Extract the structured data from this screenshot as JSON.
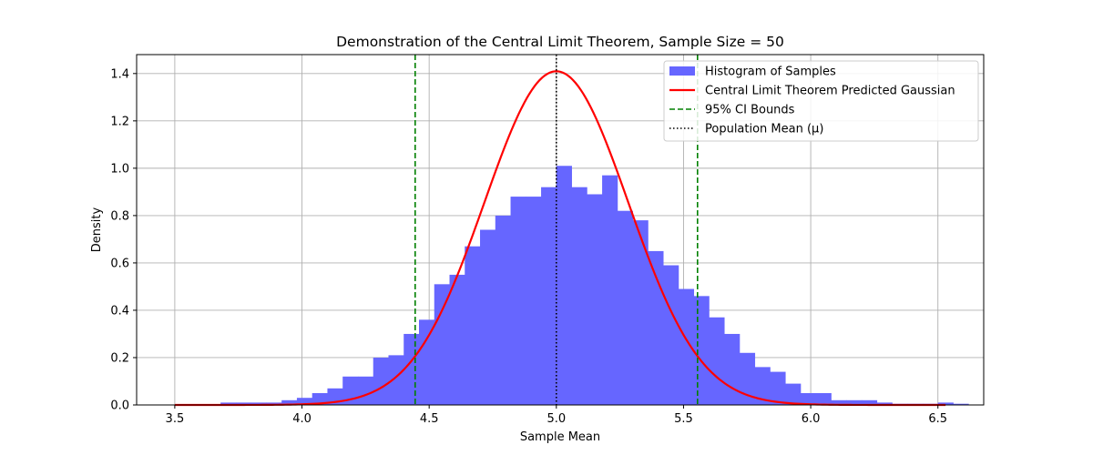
{
  "chart_data": {
    "type": "bar",
    "title": "Demonstration of the Central Limit Theorem, Sample Size = 50",
    "xlabel": "Sample Mean",
    "ylabel": "Density",
    "xlim": [
      3.35,
      6.68
    ],
    "ylim": [
      0.0,
      1.48
    ],
    "xticks": [
      "3.5",
      "4.0",
      "4.5",
      "5.0",
      "5.5",
      "6.0",
      "6.5"
    ],
    "yticks": [
      "0.0",
      "0.2",
      "0.4",
      "0.6",
      "0.8",
      "1.0",
      "1.2",
      "1.4"
    ],
    "grid": true,
    "legend_position": "top-right",
    "histogram": {
      "name": "Histogram of Samples",
      "color": "#6666ff",
      "bin_start": 3.68,
      "bin_width": 0.06,
      "values": [
        0.01,
        0.01,
        0.01,
        0.01,
        0.02,
        0.03,
        0.05,
        0.07,
        0.12,
        0.12,
        0.2,
        0.21,
        0.3,
        0.36,
        0.51,
        0.55,
        0.67,
        0.74,
        0.8,
        0.88,
        0.88,
        0.92,
        1.01,
        0.92,
        0.89,
        0.97,
        0.82,
        0.78,
        0.65,
        0.59,
        0.49,
        0.46,
        0.37,
        0.3,
        0.22,
        0.16,
        0.14,
        0.09,
        0.05,
        0.05,
        0.02,
        0.02,
        0.02,
        0.01,
        0.005,
        0.005,
        0.005,
        0.01,
        0.005
      ]
    },
    "gaussian": {
      "name": "Central Limit Theorem Predicted Gaussian",
      "color": "#ff0000",
      "mean": 5.0,
      "std": 0.283,
      "x_range": [
        3.5,
        6.53
      ]
    },
    "ci_bounds": {
      "name": "95% CI Bounds",
      "color": "#008000",
      "values": [
        4.445,
        5.555
      ]
    },
    "population_mean": {
      "name": "Population Mean (μ)",
      "color": "#000000",
      "value": 5.0
    }
  }
}
